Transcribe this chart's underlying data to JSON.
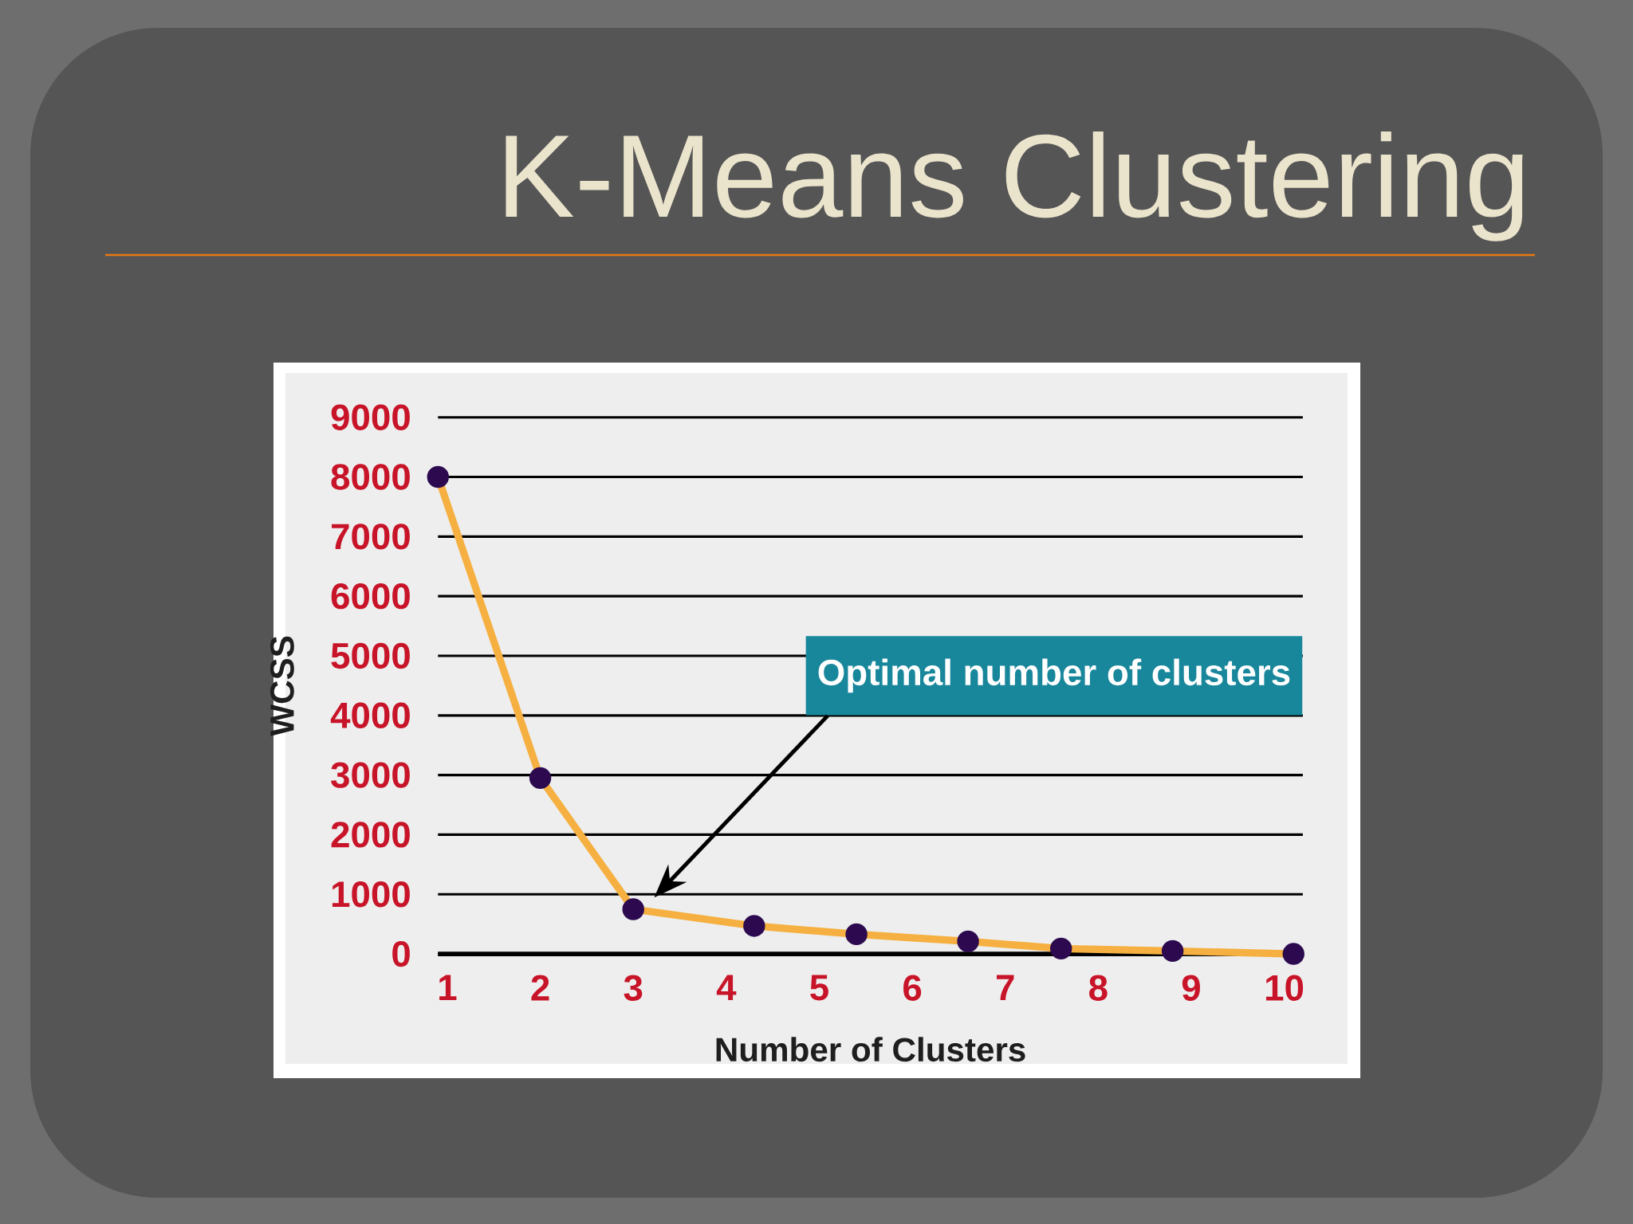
{
  "chart_data": {
    "type": "line",
    "title": "K-Means Clustering",
    "xlabel": "Number of Clusters",
    "ylabel": "WCSS",
    "x": [
      0.9,
      2.0,
      3.0,
      4.3,
      5.4,
      6.6,
      7.6,
      8.8,
      10.1
    ],
    "values": [
      8000,
      2950,
      750,
      470,
      330,
      210,
      90,
      50,
      0
    ],
    "color": "#f5b041",
    "marker": "circle",
    "xlim": [
      0.9,
      10.2
    ],
    "xticks": [
      1,
      2,
      3,
      4,
      5,
      6,
      7,
      8,
      9,
      10
    ],
    "ylim": [
      0,
      9000
    ],
    "yticks": [
      0,
      1000,
      2000,
      3000,
      4000,
      5000,
      6000,
      7000,
      8000,
      9000
    ],
    "grid": "y",
    "annotations": [
      "Optimal number of clusters"
    ]
  }
}
